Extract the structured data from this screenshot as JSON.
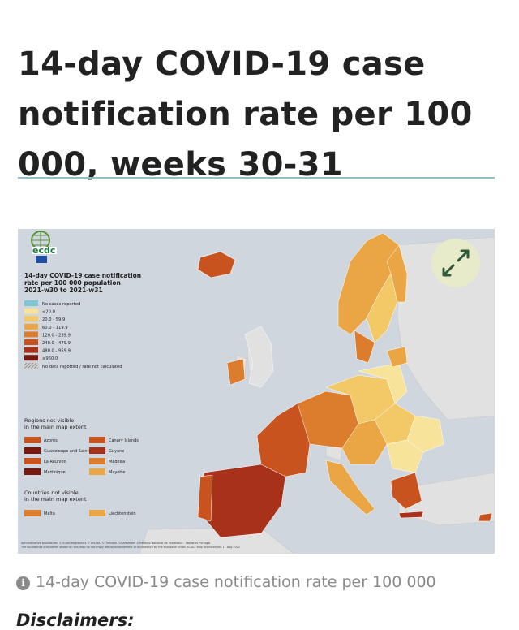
{
  "page": {
    "title": "14-day COVID-19 case notification rate per 100 000, weeks 30-31",
    "caption": "14-day COVID-19 case notification rate per 100 000",
    "disclaimers_heading": "Disclaimers:"
  },
  "map": {
    "logo_text": "ecdc",
    "legend_title_line1": "14-day COVID-19 case notification",
    "legend_title_line2": "rate per 100 000 population",
    "legend_title_line3": "2021-w30 to 2021-w31",
    "legend_items": [
      {
        "label": "No cases reported",
        "color": "#7fc6d2"
      },
      {
        "label": "<20.0",
        "color": "#f7e39a"
      },
      {
        "label": "20.0 - 59.9",
        "color": "#f3c867"
      },
      {
        "label": "60.0 - 119.9",
        "color": "#eaa544"
      },
      {
        "label": "120.0 - 239.9",
        "color": "#dc7d2e"
      },
      {
        "label": "240.0 - 479.9",
        "color": "#c9531f"
      },
      {
        "label": "480.0 - 959.9",
        "color": "#a83219"
      },
      {
        "label": "≥960.0",
        "color": "#7a1810"
      },
      {
        "label": "No data reported / rate not calculated",
        "color": "#bfbfbf"
      }
    ],
    "regions_heading_line1": "Regions not visible",
    "regions_heading_line2": "in the main map extent",
    "regions": [
      {
        "label": "Azores",
        "color": "#c9531f"
      },
      {
        "label": "Canary Islands",
        "color": "#c9531f"
      },
      {
        "label": "Guadeloupe and Saint Martin",
        "color": "#7a1810"
      },
      {
        "label": "Guyane",
        "color": "#a83219"
      },
      {
        "label": "La Reunion",
        "color": "#c9531f"
      },
      {
        "label": "Madeira",
        "color": "#dc7d2e"
      },
      {
        "label": "Martinique",
        "color": "#7a1810"
      },
      {
        "label": "Mayotte",
        "color": "#eaa544"
      }
    ],
    "countries_heading_line1": "Countries not visible",
    "countries_heading_line2": "in the main map extent",
    "countries": [
      {
        "label": "Malta",
        "color": "#dc7d2e"
      },
      {
        "label": "Liechtenstein",
        "color": "#eaa544"
      }
    ],
    "footer_line1": "Administrative boundaries: © EuroGeographics © UN-FAO © Turkstat. ©Kartverket ©Instituto Nacional de Estatística - Statistics Portugal.",
    "footer_line2": "The boundaries and names shown on this map do not imply official endorsement or acceptance by the European Union. ECDC. Map produced on: 11 Aug 2021",
    "colors": {
      "sea": "#cfd6dd",
      "non_eu": "#e1e1e1",
      "accent_rule": "#8fc1c6"
    }
  },
  "icons": {
    "expand": "expand-arrows-icon",
    "info": "info-circle-icon"
  }
}
